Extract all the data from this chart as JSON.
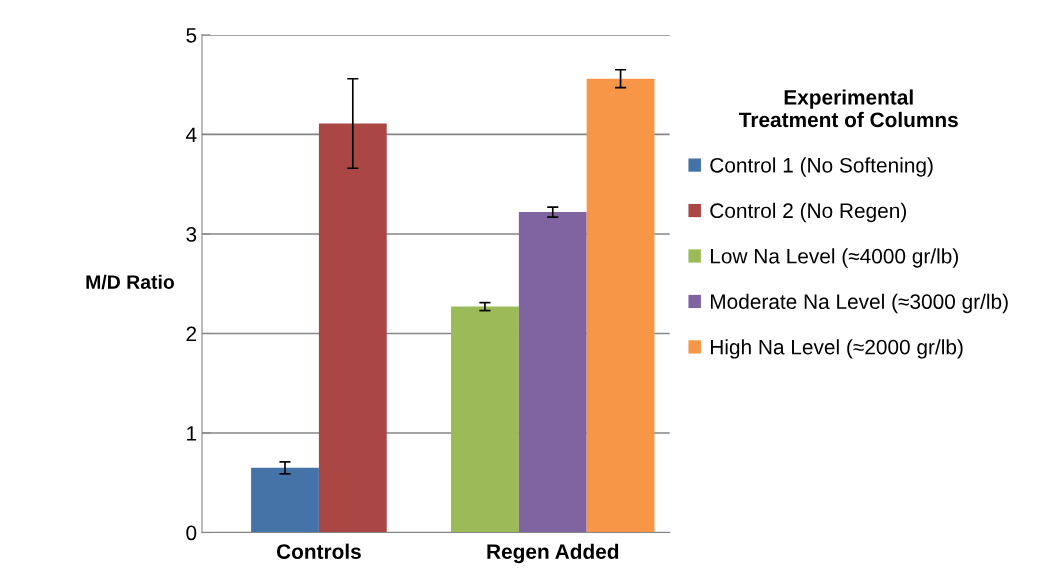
{
  "chart_data": {
    "type": "bar",
    "ylabel": "M/D Ratio",
    "legend_title": "Experimental\nTreatment of Columns",
    "categories": [
      "Controls",
      "Regen Added"
    ],
    "series": [
      {
        "name": "Control 1 (No Softening)",
        "color": "#4572a7",
        "values": [
          0.65,
          null
        ],
        "errors": [
          0.06,
          null
        ]
      },
      {
        "name": "Control 2 (No Regen)",
        "color": "#aa4643",
        "values": [
          4.11,
          null
        ],
        "errors": [
          0.45,
          null
        ]
      },
      {
        "name": "Low Na Level (≈4000 gr/lb)",
        "color": "#9bbb59",
        "values": [
          null,
          2.27
        ],
        "errors": [
          null,
          0.04
        ]
      },
      {
        "name": "Moderate Na Level (≈3000 gr/lb)",
        "color": "#8064a2",
        "values": [
          null,
          3.22
        ],
        "errors": [
          null,
          0.05
        ]
      },
      {
        "name": "High Na Level (≈2000 gr/lb)",
        "color": "#f79646",
        "values": [
          null,
          4.56
        ],
        "errors": [
          null,
          0.09
        ]
      }
    ],
    "ylim": [
      0,
      5
    ],
    "yticks": [
      0,
      1,
      2,
      3,
      4,
      5
    ],
    "grid": "y",
    "legend": "right"
  }
}
